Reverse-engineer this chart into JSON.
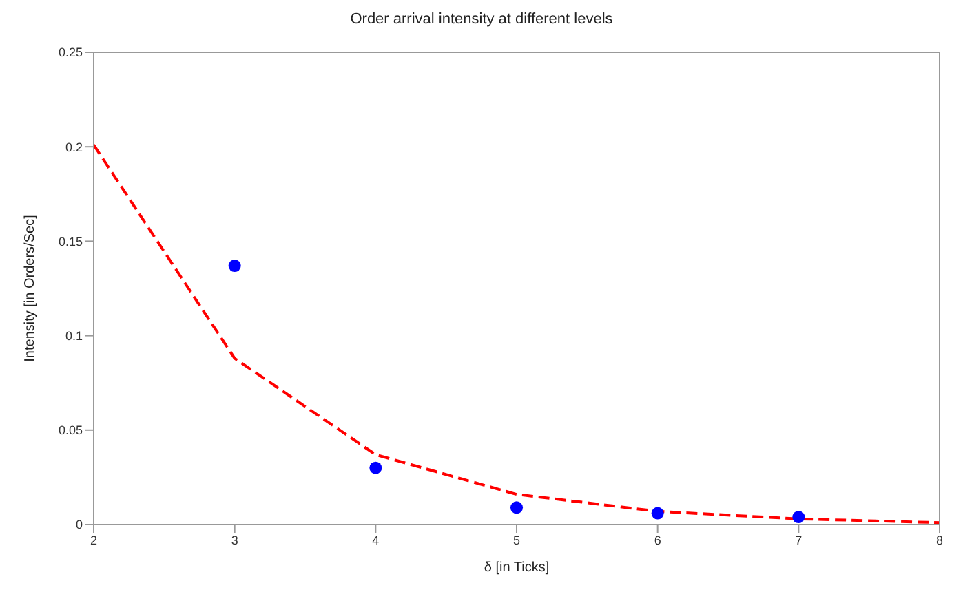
{
  "chart_data": {
    "type": "scatter",
    "title": "Order arrival intensity at different levels",
    "xlabel": "δ [in Ticks]",
    "ylabel": "Intensity [in Orders/Sec]",
    "x": [
      3,
      4,
      5,
      6,
      7
    ],
    "series": [
      {
        "color": "#0000ff",
        "marker": "circle",
        "values": [
          0.137,
          0.03,
          0.009,
          0.006,
          0.004
        ]
      },
      {
        "type": "line",
        "color": "#ff0000",
        "line_style": "dashed",
        "marker": "none",
        "x": [
          2,
          3,
          4,
          5,
          6,
          7,
          8
        ],
        "values": [
          0.201,
          0.088,
          0.037,
          0.016,
          0.007,
          0.003,
          0.001
        ]
      }
    ],
    "xlim": [
      2,
      8
    ],
    "xticks": [
      2,
      3,
      4,
      5,
      6,
      7,
      8
    ],
    "ylim": [
      0,
      0.25
    ],
    "yticks": [
      0,
      0.05,
      0.1,
      0.15,
      0.2,
      0.25
    ],
    "grid": false
  }
}
